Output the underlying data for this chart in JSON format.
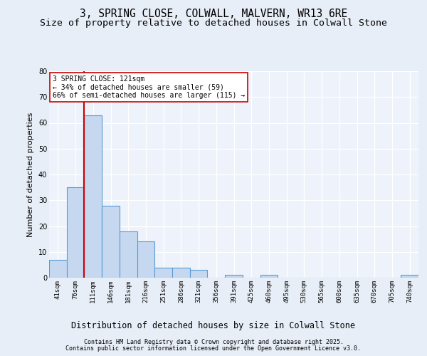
{
  "title_line1": "3, SPRING CLOSE, COLWALL, MALVERN, WR13 6RE",
  "title_line2": "Size of property relative to detached houses in Colwall Stone",
  "xlabel": "Distribution of detached houses by size in Colwall Stone",
  "ylabel": "Number of detached properties",
  "categories": [
    "41sqm",
    "76sqm",
    "111sqm",
    "146sqm",
    "181sqm",
    "216sqm",
    "251sqm",
    "286sqm",
    "321sqm",
    "356sqm",
    "391sqm",
    "425sqm",
    "460sqm",
    "495sqm",
    "530sqm",
    "565sqm",
    "600sqm",
    "635sqm",
    "670sqm",
    "705sqm",
    "740sqm"
  ],
  "values": [
    7,
    35,
    63,
    28,
    18,
    14,
    4,
    4,
    3,
    0,
    1,
    0,
    1,
    0,
    0,
    0,
    0,
    0,
    0,
    0,
    1
  ],
  "bar_color": "#c5d8f0",
  "bar_edge_color": "#5b9bd5",
  "bar_linewidth": 0.8,
  "vline_x": 1.5,
  "vline_color": "#cc0000",
  "annotation_text": "3 SPRING CLOSE: 121sqm\n← 34% of detached houses are smaller (59)\n66% of semi-detached houses are larger (115) →",
  "annotation_box_color": "#ffffff",
  "annotation_box_edgecolor": "#cc0000",
  "annotation_fontsize": 7,
  "ylim": [
    0,
    80
  ],
  "yticks": [
    0,
    10,
    20,
    30,
    40,
    50,
    60,
    70,
    80
  ],
  "background_color": "#e8eef7",
  "plot_bg_color": "#edf2fb",
  "grid_color": "#ffffff",
  "title_fontsize": 10.5,
  "subtitle_fontsize": 9.5,
  "xlabel_fontsize": 8.5,
  "ylabel_fontsize": 8,
  "tick_fontsize": 6.5,
  "footer_line1": "Contains HM Land Registry data © Crown copyright and database right 2025.",
  "footer_line2": "Contains public sector information licensed under the Open Government Licence v3.0.",
  "footer_fontsize": 6.0
}
